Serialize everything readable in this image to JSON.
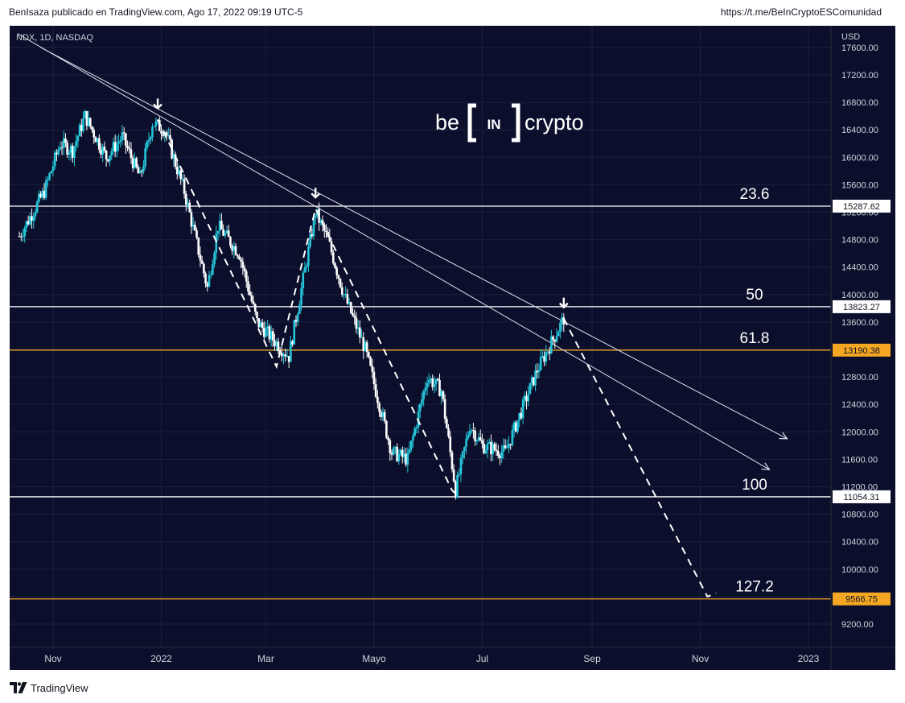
{
  "header": {
    "publisher": "BenIsaza publicado en TradingView.com, Ago 17, 2022 09:19 UTC-5",
    "social_link": "https://t.me/BeInCryptoESComunidad"
  },
  "watermark": {
    "left": "be",
    "mid": "IN",
    "right": "crypto"
  },
  "footer": {
    "brand": "TradingView"
  },
  "colors": {
    "background": "#0b0f2b",
    "candle_up": "#26c6da",
    "candle_down": "#ffffff",
    "fib_orange": "#f5a623",
    "fib_white": "#ffffff"
  },
  "chart_data": {
    "type": "candlestick",
    "symbol_label": "NDX, 1D, NASDAQ",
    "currency": "USD",
    "x_axis": {
      "ticks": [
        "Nov",
        "2022",
        "Mar",
        "Mayo",
        "Jul",
        "Sep",
        "Nov",
        "2023"
      ],
      "tick_dates": [
        "2021-11-01",
        "2022-01-01",
        "2022-03-01",
        "2022-05-01",
        "2022-07-01",
        "2022-09-01",
        "2022-11-01",
        "2023-01-01"
      ]
    },
    "y_axis": {
      "ticks": [
        9200,
        9600,
        10000,
        10400,
        10800,
        11200,
        11600,
        12000,
        12400,
        12800,
        13200,
        13600,
        14000,
        14400,
        14800,
        15200,
        15600,
        16000,
        16400,
        16800,
        17200,
        17600
      ],
      "range": [
        8900,
        17680
      ]
    },
    "series": [
      {
        "kind": "price_path",
        "points": [
          [
            "2021-10-13",
            14850
          ],
          [
            "2021-10-27",
            15500
          ],
          [
            "2021-11-05",
            16200
          ],
          [
            "2021-11-12",
            16100
          ],
          [
            "2021-11-19",
            16600
          ],
          [
            "2021-12-01",
            16000
          ],
          [
            "2021-12-10",
            16300
          ],
          [
            "2021-12-20",
            15700
          ],
          [
            "2021-12-27",
            16500
          ],
          [
            "2022-01-03",
            16400
          ],
          [
            "2022-01-14",
            15500
          ],
          [
            "2022-01-27",
            14100
          ],
          [
            "2022-02-02",
            15000
          ],
          [
            "2022-02-14",
            14600
          ],
          [
            "2022-02-24",
            13600
          ],
          [
            "2022-03-14",
            13100
          ],
          [
            "2022-03-29",
            15200
          ],
          [
            "2022-04-05",
            14800
          ],
          [
            "2022-04-14",
            14000
          ],
          [
            "2022-04-26",
            13200
          ],
          [
            "2022-05-11",
            11700
          ],
          [
            "2022-05-20",
            11600
          ],
          [
            "2022-05-31",
            12800
          ],
          [
            "2022-06-08",
            12600
          ],
          [
            "2022-06-16",
            11150
          ],
          [
            "2022-06-24",
            12100
          ],
          [
            "2022-07-01",
            11800
          ],
          [
            "2022-07-14",
            11700
          ],
          [
            "2022-08-01",
            12900
          ],
          [
            "2022-08-16",
            13650
          ]
        ]
      },
      {
        "kind": "projection_dashed",
        "points": [
          [
            "2021-12-30",
            16550
          ],
          [
            "2022-03-07",
            12950
          ],
          [
            "2022-03-29",
            15250
          ],
          [
            "2022-06-14",
            11150
          ],
          [
            "2022-06-16",
            11100
          ]
        ]
      },
      {
        "kind": "projection_dashed",
        "points": [
          [
            "2022-08-16",
            13650
          ],
          [
            "2022-11-05",
            9600
          ],
          [
            "2022-11-10",
            9650
          ]
        ]
      }
    ],
    "trendlines": [
      {
        "from": [
          "2021-10-25",
          17600
        ],
        "to": [
          "2022-12-20",
          11900
        ]
      },
      {
        "from": [
          "2021-10-12",
          17800
        ],
        "to": [
          "2022-12-10",
          11450
        ]
      }
    ],
    "fib_levels": [
      {
        "ratio": "23.6",
        "price": "15287.62",
        "color": "white"
      },
      {
        "ratio": "50",
        "price": "13823.27",
        "color": "white"
      },
      {
        "ratio": "61.8",
        "price": "13190.38",
        "color": "orange"
      },
      {
        "ratio": "100",
        "price": "11054.31",
        "color": "white"
      },
      {
        "ratio": "127.2",
        "price": "9566.75",
        "color": "orange"
      }
    ],
    "arrow_markers": [
      [
        "2021-12-30",
        16550
      ],
      [
        "2022-03-29",
        15250
      ],
      [
        "2022-08-16",
        13650
      ]
    ]
  }
}
